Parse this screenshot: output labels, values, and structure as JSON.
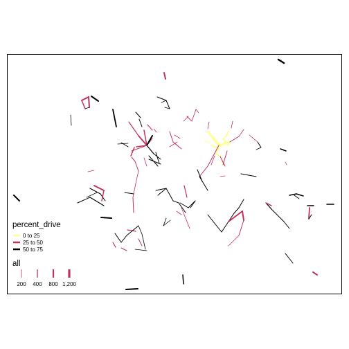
{
  "legend": {
    "percent_drive": {
      "title": "percent_drive",
      "entries": [
        {
          "label": "0 to 25",
          "color": "#ffff99"
        },
        {
          "label": "25 to 50",
          "color": "#c0325c"
        },
        {
          "label": "50 to 75",
          "color": "#000000"
        }
      ]
    },
    "all": {
      "title": "all",
      "entries": [
        {
          "label": "200",
          "value": 200
        },
        {
          "label": "400",
          "value": 400
        },
        {
          "label": "800",
          "value": 800
        },
        {
          "label": "1,200",
          "value": 1200
        }
      ]
    }
  },
  "colors": {
    "low": "#ffff99",
    "mid": "#c0325c",
    "high": "#000000",
    "frame": "#000000",
    "background": "#ffffff"
  }
}
